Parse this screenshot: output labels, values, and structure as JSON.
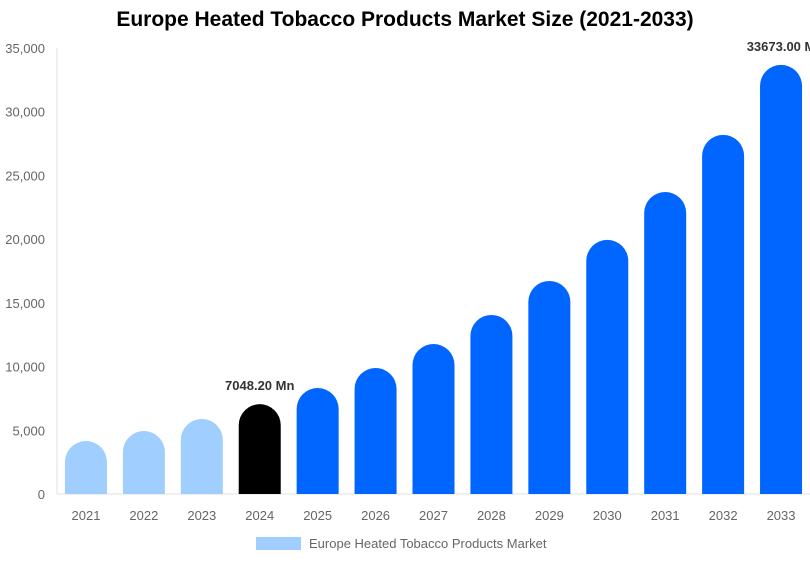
{
  "chart_data": {
    "type": "bar",
    "title": "Europe Heated Tobacco Products Market Size (2021-2033)",
    "categories": [
      "2021",
      "2022",
      "2023",
      "2024",
      "2025",
      "2026",
      "2027",
      "2028",
      "2029",
      "2030",
      "2031",
      "2032",
      "2033"
    ],
    "series": [
      {
        "name": "Europe Heated Tobacco Products Market",
        "values": [
          4160,
          4940,
          5890,
          7048.2,
          8320,
          9890,
          11770,
          14050,
          16720,
          19940,
          23700,
          28180,
          33673
        ]
      }
    ],
    "ylim": [
      0,
      35000
    ],
    "yticks": [
      0,
      5000,
      10000,
      15000,
      20000,
      25000,
      30000,
      35000
    ],
    "ytick_labels": [
      "0",
      "5,000",
      "10,000",
      "15,000",
      "20,000",
      "25,000",
      "30,000",
      "35,000"
    ],
    "data_labels": [
      {
        "category": "2024",
        "text": "7048.20 Mn"
      },
      {
        "category": "2033",
        "text": "33673.00 M"
      }
    ],
    "bar_colors": {
      "historical": "#a0cfff",
      "current": "#000000",
      "forecast": "#0066ff"
    },
    "grid": false,
    "legend_position": "bottom"
  }
}
